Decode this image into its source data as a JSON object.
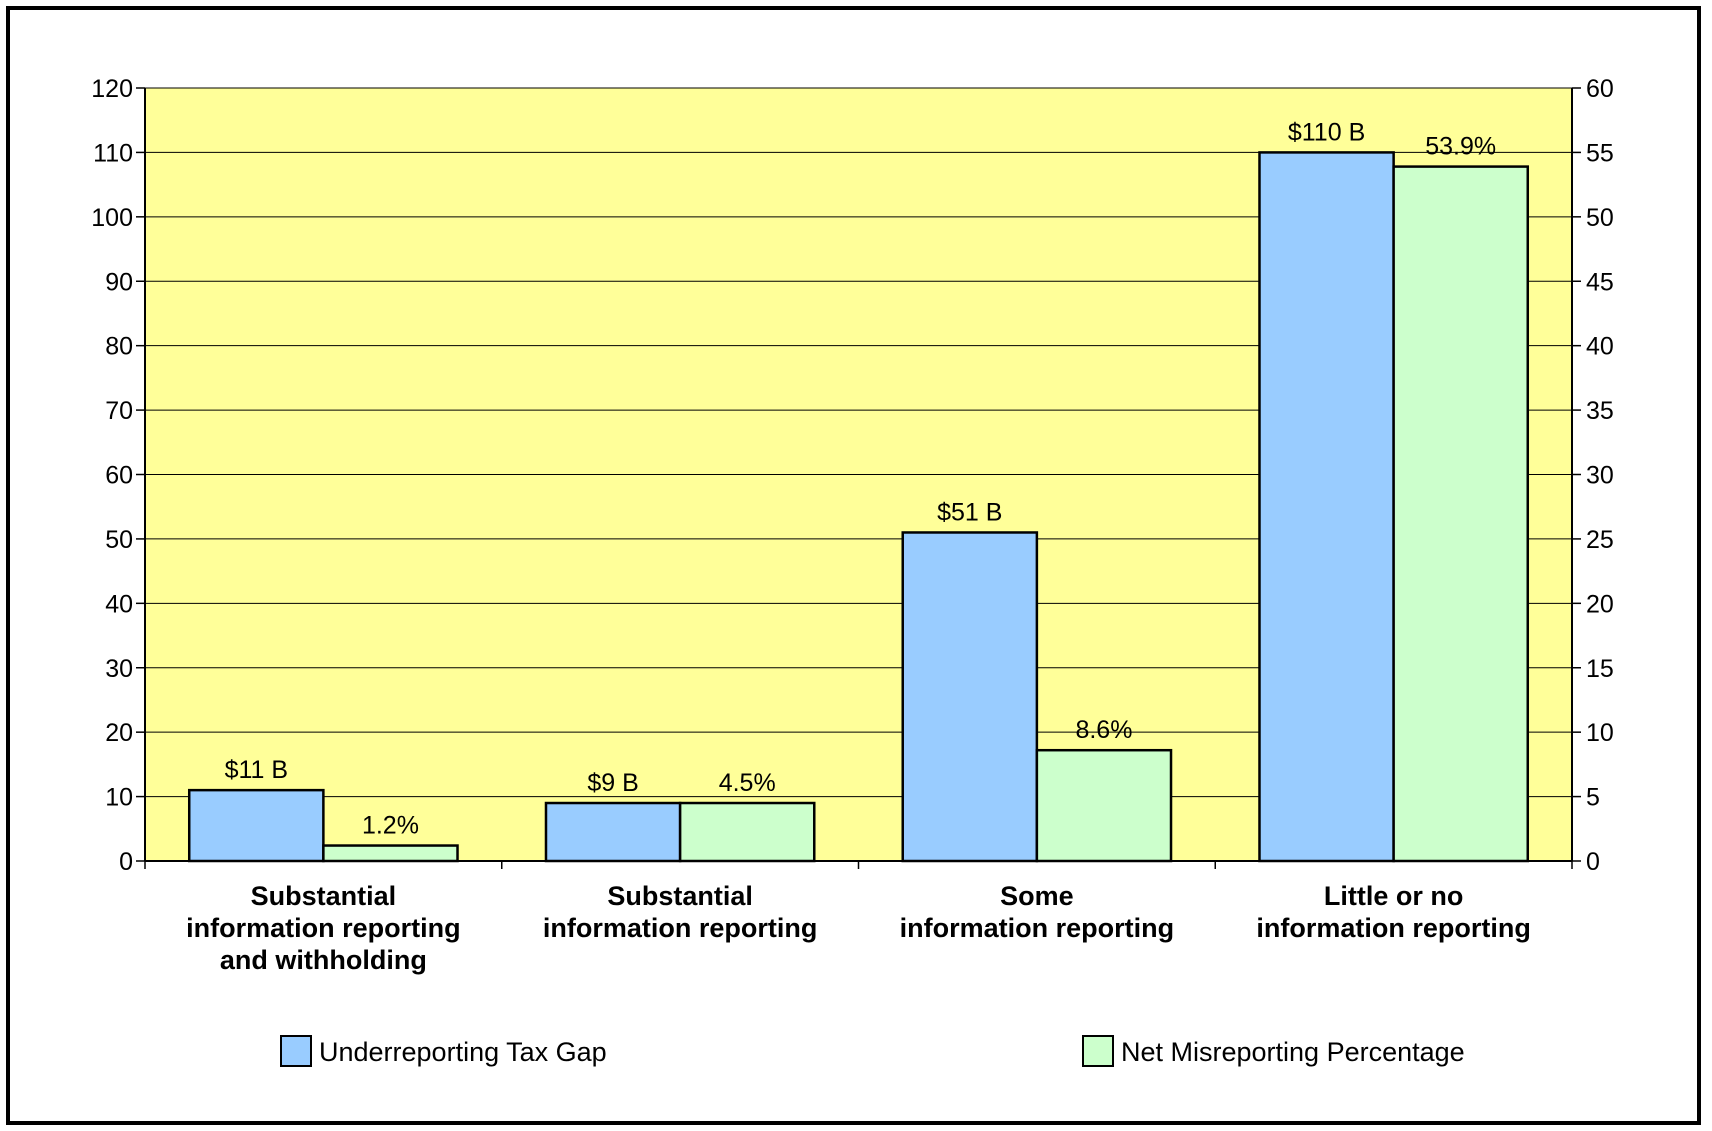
{
  "chart_data": {
    "type": "bar",
    "categories": [
      [
        "Substantial",
        "information reporting",
        "and withholding"
      ],
      [
        "Substantial",
        "information reporting"
      ],
      [
        "Some",
        "information reporting"
      ],
      [
        "Little or no",
        "information reporting"
      ]
    ],
    "series": [
      {
        "name": "Underreporting Tax Gap",
        "axis": "left",
        "values": [
          11,
          9,
          51,
          110
        ],
        "labels": [
          "$11 B",
          "$9 B",
          "$51 B",
          "$110 B"
        ],
        "color": "#99CCFF"
      },
      {
        "name": "Net Misreporting Percentage",
        "axis": "right",
        "values": [
          1.2,
          4.5,
          8.6,
          53.9
        ],
        "labels": [
          "1.2%",
          "4.5%",
          "8.6%",
          "53.9%"
        ],
        "color": "#CCFFCC"
      }
    ],
    "y_left": {
      "min": 0,
      "max": 120,
      "step": 10
    },
    "y_right": {
      "min": 0,
      "max": 60,
      "step": 5
    },
    "plot_background": "#FFFF99",
    "grid": true,
    "legend_position": "bottom"
  }
}
